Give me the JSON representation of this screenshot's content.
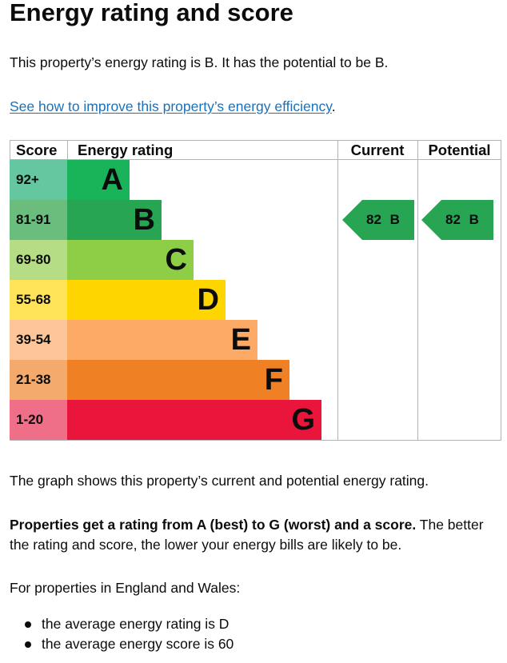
{
  "page": {
    "title": "Energy rating and score",
    "intro": "This property’s energy rating is B. It has the potential to be B.",
    "link": "See how to improve this property’s energy efficiency",
    "link_suffix": ".",
    "graph_note": "The graph shows this property’s current and potential energy rating.",
    "bold_sentence": "Properties get a rating from A (best) to G (worst) and a score.",
    "rest_sentence": " The better the rating and score, the lower your energy bills are likely to be.",
    "region_text": "For properties in England and Wales:",
    "bullets": [
      "the average energy rating is D",
      "the average energy score is 60"
    ]
  },
  "chart_data": {
    "type": "bar",
    "headers": {
      "score": "Score",
      "rating": "Energy rating",
      "current": "Current",
      "potential": "Potential"
    },
    "bands": [
      {
        "score": "92+",
        "letter": "A",
        "color": "#19b459",
        "score_bg": "#64c7a0"
      },
      {
        "score": "81-91",
        "letter": "B",
        "color": "#27a553",
        "score_bg": "#6bbd7e"
      },
      {
        "score": "69-80",
        "letter": "C",
        "color": "#8dce46",
        "score_bg": "#b4dd85"
      },
      {
        "score": "55-68",
        "letter": "D",
        "color": "#ffd500",
        "score_bg": "#ffe45a"
      },
      {
        "score": "39-54",
        "letter": "E",
        "color": "#fcaa65",
        "score_bg": "#fdc69a"
      },
      {
        "score": "21-38",
        "letter": "F",
        "color": "#ef8023",
        "score_bg": "#f4aa6d"
      },
      {
        "score": "1-20",
        "letter": "G",
        "color": "#e9153b",
        "score_bg": "#ef6e88"
      }
    ],
    "current": {
      "score": 82,
      "letter": "B",
      "label": "82 B",
      "color": "#27a553"
    },
    "potential": {
      "score": 82,
      "letter": "B",
      "label": "82 B",
      "color": "#27a553"
    }
  }
}
